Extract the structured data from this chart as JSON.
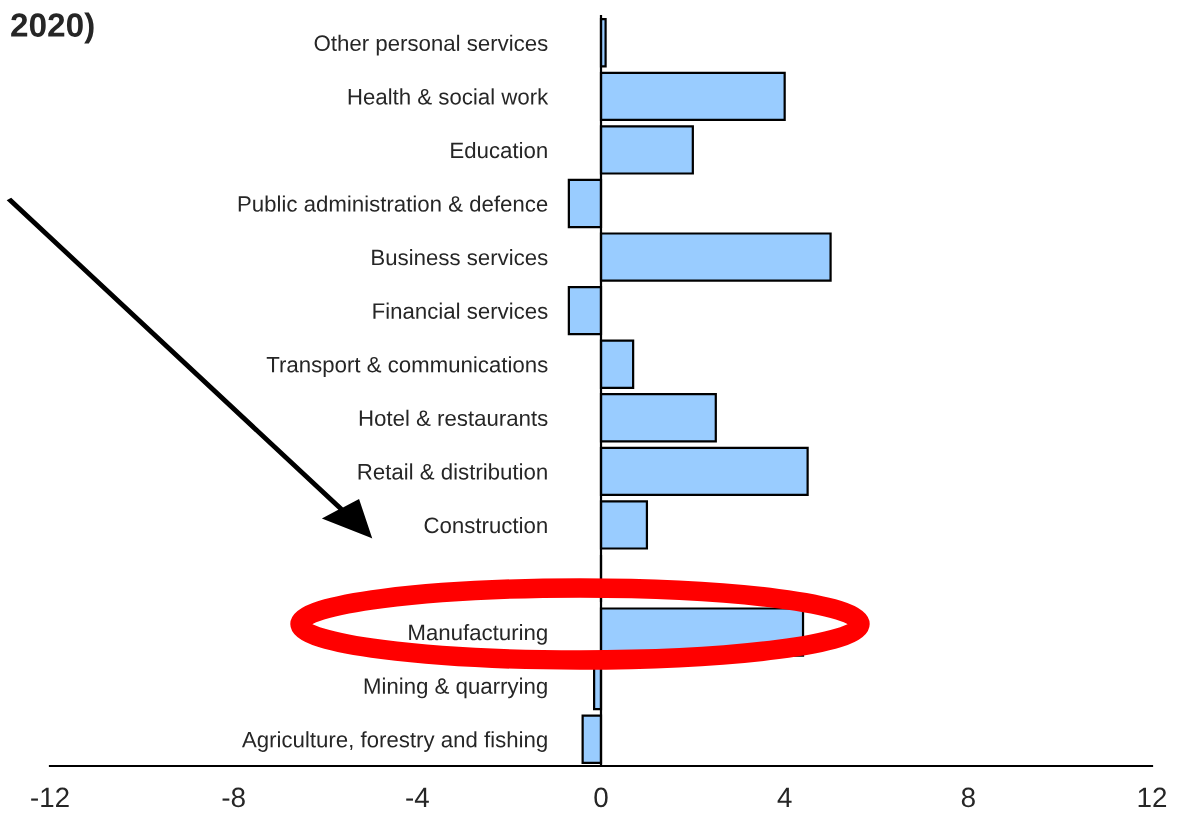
{
  "chart_data": {
    "type": "bar",
    "orientation": "horizontal",
    "title": "2020)",
    "categories": [
      "Other personal services",
      "Health & social work",
      "Education",
      "Public administration & defence",
      "Business services",
      "Financial services",
      "Transport & communications",
      "Hotel & restaurants",
      "Retail & distribution",
      "Construction",
      null,
      "Manufacturing",
      "Mining & quarrying",
      "Agriculture, forestry and fishing"
    ],
    "values": [
      0.1,
      4.0,
      2.0,
      -0.7,
      5.0,
      -0.7,
      0.7,
      2.5,
      4.5,
      1.0,
      0,
      4.4,
      -0.15,
      -0.4
    ],
    "color": "#99ccff",
    "xlim": [
      -12,
      12
    ],
    "xticks": [
      -12,
      -8,
      -4,
      0,
      4,
      8,
      12
    ],
    "grid": false
  }
}
